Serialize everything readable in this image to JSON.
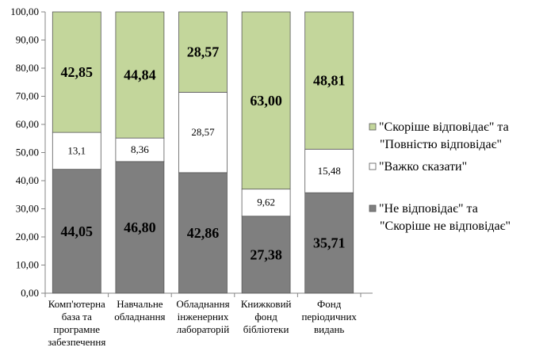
{
  "chart_data": {
    "type": "bar",
    "stacked": true,
    "title": "",
    "xlabel": "",
    "ylabel": "",
    "ylim": [
      0,
      100
    ],
    "yticks": [
      "0,00",
      "10,00",
      "20,00",
      "30,00",
      "40,00",
      "50,00",
      "60,00",
      "70,00",
      "80,00",
      "90,00",
      "100,00"
    ],
    "categories": [
      [
        "Комп'ютерна",
        "база та",
        "програмне",
        "забезпечення"
      ],
      [
        "Навчальне",
        "обладнання"
      ],
      [
        "Обладнання",
        "інженерних",
        "лабораторій"
      ],
      [
        "Книжковий",
        "фонд",
        "бібліотеки"
      ],
      [
        "Фонд",
        "періодичних",
        "видань"
      ]
    ],
    "legend_position": "right",
    "series": [
      {
        "name": "\"Не відповідає\" та \"Скоріше не відповідає\"",
        "legend_lines": [
          "\"Не відповідає\" та",
          "\"Скоріше не відповідає\""
        ],
        "color": "#7f7f7f",
        "values": [
          44.05,
          46.8,
          42.86,
          27.38,
          35.71
        ],
        "labels": [
          "44,05",
          "46,80",
          "42,86",
          "27,38",
          "35,71"
        ],
        "label_style": "big"
      },
      {
        "name": "\"Важко сказати\"",
        "legend_lines": [
          "\"Важко сказати\""
        ],
        "color": "#ffffff",
        "values": [
          13.1,
          8.36,
          28.57,
          9.62,
          15.48
        ],
        "labels": [
          "13,1",
          "8,36",
          "28,57",
          "9,62",
          "15,48"
        ],
        "label_style": "small"
      },
      {
        "name": "\"Скоріше відповідає\" та \"Повністю відповідає\"",
        "legend_lines": [
          "\"Скоріше відповідає\" та",
          "\"Повністю відповідає\""
        ],
        "color": "#c3d69b",
        "values": [
          42.85,
          44.84,
          28.57,
          63.0,
          48.81
        ],
        "labels": [
          "42,85",
          "44,84",
          "28,57",
          "63,00",
          "48,81"
        ],
        "label_style": "big"
      }
    ]
  }
}
